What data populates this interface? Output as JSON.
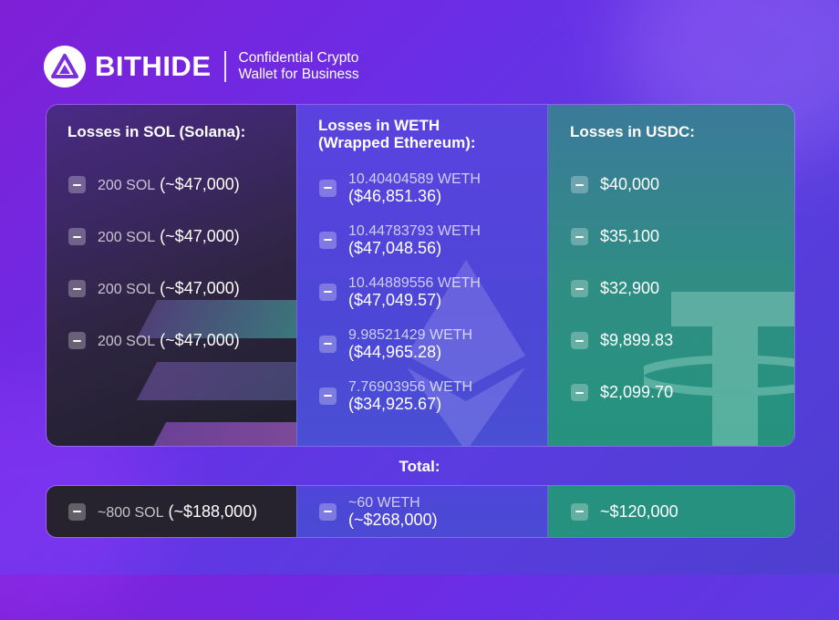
{
  "brand": {
    "name": "BITHIDE",
    "tagline_line1": "Confidential Crypto",
    "tagline_line2": "Wallet for Business",
    "logo_icon": "bithide-triangle-logo-icon"
  },
  "columns": {
    "sol": {
      "title": "Losses in SOL (Solana):",
      "items": [
        {
          "amount": "200 SOL",
          "usd": "(~$47,000)"
        },
        {
          "amount": "200 SOL",
          "usd": "(~$47,000)"
        },
        {
          "amount": "200 SOL",
          "usd": "(~$47,000)"
        },
        {
          "amount": "200 SOL",
          "usd": "(~$47,000)"
        }
      ]
    },
    "weth": {
      "title_line1": "Losses in WETH",
      "title_line2": "(Wrapped Ethereum):",
      "items": [
        {
          "amount": "10.40404589 WETH",
          "usd": "($46,851.36)"
        },
        {
          "amount": "10.44783793 WETH",
          "usd": "($47,048.56)"
        },
        {
          "amount": "10.44889556 WETH",
          "usd": "($47,049.57)"
        },
        {
          "amount": "9.98521429 WETH",
          "usd": "($44,965.28)"
        },
        {
          "amount": "7.76903956 WETH",
          "usd": "($34,925.67)"
        }
      ]
    },
    "usdc": {
      "title": "Losses in USDC:",
      "items": [
        {
          "usd": "$40,000"
        },
        {
          "usd": "$35,100"
        },
        {
          "usd": "$32,900"
        },
        {
          "usd": "$9,899.83"
        },
        {
          "usd": "$2,099.70"
        }
      ]
    }
  },
  "total": {
    "label": "Total:",
    "sol": {
      "amount": "~800 SOL",
      "usd": "(~$188,000)"
    },
    "weth": {
      "amount": "~60 WETH",
      "usd": "(~$268,000)"
    },
    "usdc": {
      "usd": "~$120,000"
    }
  },
  "colors": {
    "sol_column": "#2f2544",
    "weth_column": "#4d46d6",
    "usdc_column": "#2f8e83",
    "sol_bar_teal": "#3ec7a5",
    "sol_bar_purple": "#9b5de5"
  },
  "decor_icons": [
    "solana-logo-icon",
    "ethereum-logo-icon",
    "tether-logo-icon"
  ]
}
